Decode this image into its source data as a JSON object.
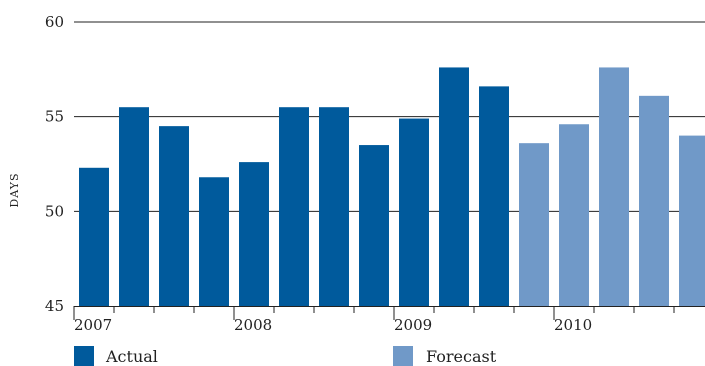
{
  "chart_data": {
    "type": "bar",
    "title": "",
    "xlabel": "",
    "ylabel": "DAYS",
    "ylim": [
      45,
      60
    ],
    "yticks": [
      45,
      50,
      55,
      60
    ],
    "grid": true,
    "legend_position": "bottom",
    "x_year_labels": [
      "2007",
      "2008",
      "2009",
      "2010"
    ],
    "x_year_start_indices": [
      0,
      4,
      8,
      12
    ],
    "bars_per_year": 4,
    "values": [
      52.3,
      55.5,
      54.5,
      51.8,
      52.6,
      55.5,
      55.5,
      53.5,
      54.9,
      57.6,
      56.6,
      53.6,
      54.6,
      57.6,
      56.1,
      54.0
    ],
    "series_assignment": [
      "Actual",
      "Actual",
      "Actual",
      "Actual",
      "Actual",
      "Actual",
      "Actual",
      "Actual",
      "Actual",
      "Actual",
      "Actual",
      "Forecast",
      "Forecast",
      "Forecast",
      "Forecast",
      "Forecast"
    ],
    "series": [
      {
        "name": "Actual",
        "color": "#005a9c"
      },
      {
        "name": "Forecast",
        "color": "#7099c8"
      }
    ]
  }
}
